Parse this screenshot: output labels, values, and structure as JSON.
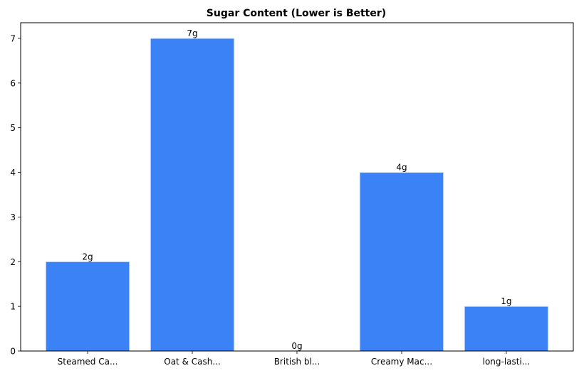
{
  "chart_data": {
    "type": "bar",
    "title": "Sugar Content (Lower is Better)",
    "xlabel": "",
    "ylabel": "",
    "categories": [
      "Steamed Ca...",
      "Oat & Cash...",
      "British bl...",
      "Creamy Mac...",
      "long-lasti..."
    ],
    "values": [
      2,
      7,
      0,
      4,
      1
    ],
    "data_labels": [
      "2g",
      "7g",
      "0g",
      "4g",
      "1g"
    ],
    "yticks": [
      0,
      1,
      2,
      3,
      4,
      5,
      6,
      7
    ],
    "ylim": [
      0,
      7.35
    ],
    "grid": false,
    "bar_color": "#3b82f6",
    "bar_edge_color": "#dbe8fd"
  }
}
